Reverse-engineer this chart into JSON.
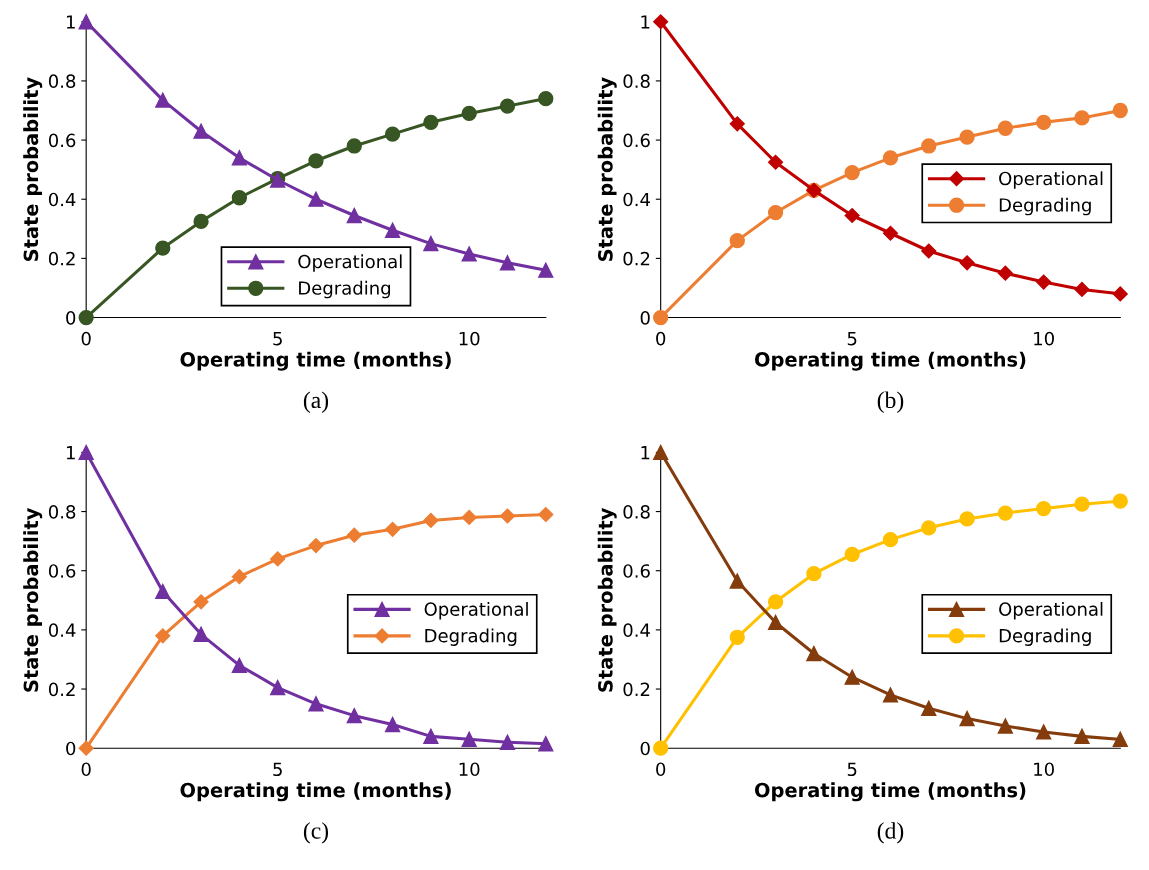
{
  "chart_data": [
    {
      "type": "line",
      "xlabel": "Operating time (months)",
      "ylabel": "State probability",
      "annotations": [
        "(a)"
      ],
      "x": [
        0,
        2,
        3,
        4,
        5,
        6,
        7,
        8,
        9,
        10,
        11,
        12
      ],
      "xlim": [
        0,
        12
      ],
      "xticks": [
        0,
        5,
        10
      ],
      "ylim": [
        0,
        1
      ],
      "yticks": [
        0,
        0.2,
        0.4,
        0.6,
        0.8,
        1
      ],
      "grid": false,
      "legend": "bottom",
      "line_style": "solid",
      "series": [
        {
          "name": "Operational",
          "color": "#7030a0",
          "marker": "triangle",
          "values": [
            1,
            0.735,
            0.63,
            0.54,
            0.465,
            0.4,
            0.345,
            0.295,
            0.25,
            0.215,
            0.185,
            0.16
          ]
        },
        {
          "name": "Degrading",
          "color": "#375623",
          "marker": "circle",
          "values": [
            0,
            0.235,
            0.325,
            0.405,
            0.47,
            0.53,
            0.58,
            0.62,
            0.66,
            0.69,
            0.715,
            0.74
          ]
        }
      ]
    },
    {
      "type": "line",
      "xlabel": "Operating time (months)",
      "ylabel": "State probability",
      "annotations": [
        "(b)"
      ],
      "x": [
        0,
        2,
        3,
        4,
        5,
        6,
        7,
        8,
        9,
        10,
        11,
        12
      ],
      "xlim": [
        0,
        12
      ],
      "xticks": [
        0,
        5,
        10
      ],
      "ylim": [
        0,
        1
      ],
      "yticks": [
        0,
        0.2,
        0.4,
        0.6,
        0.8,
        1
      ],
      "grid": false,
      "legend": "right",
      "line_style": "solid",
      "series": [
        {
          "name": "Operational",
          "color": "#c00000",
          "marker": "diamond",
          "values": [
            1,
            0.655,
            0.525,
            0.43,
            0.345,
            0.285,
            0.225,
            0.185,
            0.15,
            0.12,
            0.095,
            0.08
          ]
        },
        {
          "name": "Degrading",
          "color": "#ed7d31",
          "marker": "circle",
          "values": [
            0,
            0.26,
            0.355,
            0.43,
            0.49,
            0.54,
            0.58,
            0.61,
            0.64,
            0.66,
            0.675,
            0.7
          ]
        }
      ]
    },
    {
      "type": "line",
      "xlabel": "Operating time (months)",
      "ylabel": "State probability",
      "annotations": [
        "(c)"
      ],
      "x": [
        0,
        2,
        3,
        4,
        5,
        6,
        7,
        8,
        9,
        10,
        11,
        12
      ],
      "xlim": [
        0,
        12
      ],
      "xticks": [
        0,
        5,
        10
      ],
      "ylim": [
        0,
        1
      ],
      "yticks": [
        0,
        0.2,
        0.4,
        0.6,
        0.8,
        1
      ],
      "grid": false,
      "legend": "right",
      "line_style": "solid",
      "series": [
        {
          "name": "Operational",
          "color": "#7030a0",
          "marker": "triangle",
          "values": [
            1,
            0.53,
            0.385,
            0.28,
            0.205,
            0.15,
            0.11,
            0.08,
            0.04,
            0.03,
            0.02,
            0.015
          ]
        },
        {
          "name": "Degrading",
          "color": "#ed7d31",
          "marker": "diamond",
          "values": [
            0,
            0.38,
            0.495,
            0.58,
            0.64,
            0.685,
            0.72,
            0.74,
            0.77,
            0.78,
            0.785,
            0.79
          ]
        }
      ]
    },
    {
      "type": "line",
      "xlabel": "Operating time (months)",
      "ylabel": "State probability",
      "annotations": [
        "(d)"
      ],
      "x": [
        0,
        2,
        3,
        4,
        5,
        6,
        7,
        8,
        9,
        10,
        11,
        12
      ],
      "xlim": [
        0,
        12
      ],
      "xticks": [
        0,
        5,
        10
      ],
      "ylim": [
        0,
        1
      ],
      "yticks": [
        0,
        0.2,
        0.4,
        0.6,
        0.8,
        1
      ],
      "grid": false,
      "legend": "right",
      "line_style": "solid",
      "series": [
        {
          "name": "Operational",
          "color": "#843c0c",
          "marker": "triangle",
          "values": [
            1,
            0.565,
            0.425,
            0.32,
            0.24,
            0.18,
            0.135,
            0.1,
            0.075,
            0.055,
            0.04,
            0.03
          ]
        },
        {
          "name": "Degrading",
          "color": "#ffc000",
          "marker": "circle",
          "values": [
            0,
            0.375,
            0.495,
            0.59,
            0.655,
            0.705,
            0.745,
            0.775,
            0.795,
            0.81,
            0.825,
            0.835
          ]
        }
      ]
    }
  ]
}
